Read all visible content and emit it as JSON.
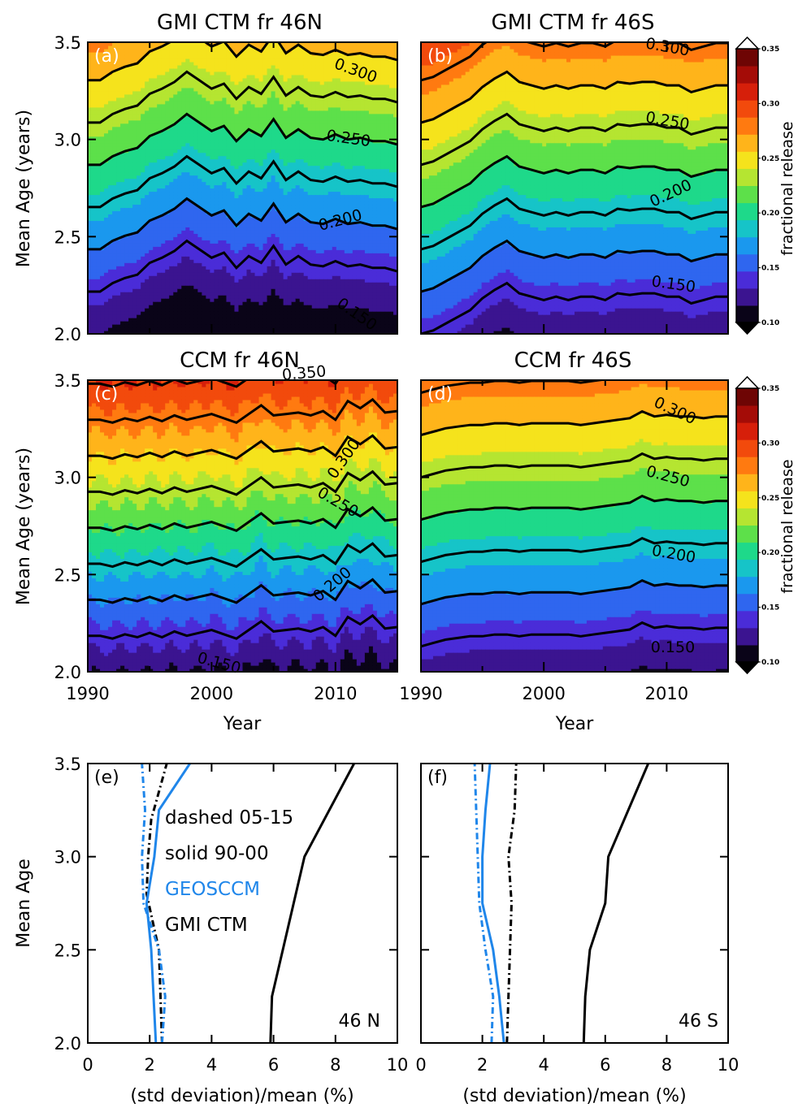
{
  "colors": {
    "scale": [
      "#0a0418",
      "#3b1490",
      "#4a2cd8",
      "#2f66ef",
      "#1a98ee",
      "#16c4c8",
      "#1ed98a",
      "#5de04a",
      "#b5e531",
      "#f5e31c",
      "#ffb41a",
      "#ff7a10",
      "#f24a0c",
      "#d61f0a",
      "#a40c07",
      "#6e0504"
    ],
    "geosccm": "#1f86ea",
    "gmictm": "#000000"
  },
  "colorbar": {
    "label": "fractional release",
    "ticks": [
      "0.10",
      "0.15",
      "0.20",
      "0.25",
      "0.30",
      "0.35"
    ]
  },
  "chart_data": [
    {
      "type": "heatmap",
      "panel": "(a)",
      "title": "GMI CTM fr 46N",
      "xlabel": "",
      "ylabel": "Mean Age (years)",
      "xlim": [
        1990,
        2015
      ],
      "ylim": [
        2.0,
        3.5
      ],
      "yticks": [
        "2.0",
        "2.5",
        "3.0",
        "3.5"
      ],
      "xticks": [],
      "contour_labels": [
        {
          "text": "0.300",
          "x": 2011.5,
          "y": 3.33,
          "rot": 20
        },
        {
          "text": "0.250",
          "x": 2011,
          "y": 2.98,
          "rot": 8
        },
        {
          "text": "0.200",
          "x": 2010.5,
          "y": 2.56,
          "rot": -15
        },
        {
          "text": "0.150",
          "x": 2011.5,
          "y": 2.08,
          "rot": 35
        }
      ],
      "years": [
        1990,
        1991,
        1992,
        1993,
        1994,
        1995,
        1996,
        1997,
        1998,
        1999,
        2000,
        2001,
        2002,
        2003,
        2004,
        2005,
        2006,
        2007,
        2008,
        2009,
        2010,
        2011,
        2012,
        2013,
        2014,
        2015
      ],
      "anomaly": [
        0.0,
        0.0,
        -0.005,
        -0.008,
        -0.01,
        -0.017,
        -0.02,
        -0.024,
        -0.03,
        -0.025,
        -0.02,
        -0.023,
        -0.014,
        -0.021,
        -0.017,
        -0.027,
        -0.016,
        -0.021,
        -0.016,
        -0.015,
        -0.018,
        -0.015,
        -0.016,
        -0.014,
        -0.014,
        -0.012
      ],
      "slope": 0.115,
      "intercept": 0.0,
      "noise": 0.0
    },
    {
      "type": "heatmap",
      "panel": "(b)",
      "title": "GMI CTM fr 46S",
      "xlabel": "",
      "ylabel": "",
      "xlim": [
        1990,
        2015
      ],
      "ylim": [
        2.0,
        3.5
      ],
      "yticks": [],
      "xticks": [],
      "contour_labels": [
        {
          "text": "0.300",
          "x": 2010,
          "y": 3.45,
          "rot": 10
        },
        {
          "text": "0.250",
          "x": 2010,
          "y": 3.07,
          "rot": 10
        },
        {
          "text": "0.200",
          "x": 2010.5,
          "y": 2.7,
          "rot": -25
        },
        {
          "text": "0.150",
          "x": 2010.5,
          "y": 2.23,
          "rot": 8
        }
      ],
      "years": [
        1990,
        1991,
        1992,
        1993,
        1994,
        1995,
        1996,
        1997,
        1998,
        1999,
        2000,
        2001,
        2002,
        2003,
        2004,
        2005,
        2006,
        2007,
        2008,
        2009,
        2010,
        2011,
        2012,
        2013,
        2014,
        2015
      ],
      "anomaly": [
        0.018,
        0.016,
        0.012,
        0.008,
        0.004,
        -0.003,
        -0.008,
        -0.012,
        -0.006,
        -0.004,
        -0.002,
        -0.004,
        -0.002,
        -0.004,
        -0.004,
        -0.002,
        -0.006,
        -0.005,
        -0.006,
        -0.006,
        -0.004,
        -0.004,
        0.0,
        -0.002,
        -0.004,
        -0.004
      ],
      "slope": 0.115,
      "intercept": 0.007,
      "noise": 0.0
    },
    {
      "type": "heatmap",
      "panel": "(c)",
      "title": "CCM fr 46N",
      "xlabel": "Year",
      "ylabel": "Mean Age (years)",
      "xlim": [
        1990,
        2015
      ],
      "ylim": [
        2.0,
        3.5
      ],
      "yticks": [
        "2.0",
        "2.5",
        "3.0",
        "3.5"
      ],
      "xticks": [
        "1990",
        "2000",
        "2010"
      ],
      "contour_labels": [
        {
          "text": "0.350",
          "x": 2007.5,
          "y": 3.51,
          "rot": -5
        },
        {
          "text": "0.300",
          "x": 2011,
          "y": 3.08,
          "rot": -55
        },
        {
          "text": "0.250",
          "x": 2010,
          "y": 2.85,
          "rot": 30
        },
        {
          "text": "0.200",
          "x": 2010,
          "y": 2.43,
          "rot": -40
        },
        {
          "text": "0.150",
          "x": 2000.5,
          "y": 2.02,
          "rot": 15
        }
      ],
      "years": [
        1990,
        1991,
        1992,
        1993,
        1994,
        1995,
        1996,
        1997,
        1998,
        1999,
        2000,
        2001,
        2002,
        2003,
        2004,
        2005,
        2006,
        2007,
        2008,
        2009,
        2010,
        2011,
        2012,
        2013,
        2014,
        2015
      ],
      "anomaly": [
        0.0,
        0.0,
        0.002,
        -0.001,
        0.001,
        -0.002,
        0.001,
        -0.003,
        0.0,
        -0.002,
        -0.004,
        -0.001,
        0.002,
        -0.004,
        -0.01,
        -0.003,
        -0.004,
        -0.005,
        -0.003,
        -0.006,
        0.0,
        -0.013,
        -0.008,
        -0.014,
        -0.005,
        -0.006
      ],
      "slope": 0.135,
      "intercept": 0.0,
      "noise": 0.004
    },
    {
      "type": "heatmap",
      "panel": "(d)",
      "title": "CCM fr 46S",
      "xlabel": "Year",
      "ylabel": "",
      "xlim": [
        1990,
        2015
      ],
      "ylim": [
        2.0,
        3.5
      ],
      "yticks": [],
      "xticks": [
        "1990",
        "2000",
        "2010"
      ],
      "contour_labels": [
        {
          "text": "0.300",
          "x": 2010.5,
          "y": 3.32,
          "rot": 25
        },
        {
          "text": "0.250",
          "x": 2010,
          "y": 2.98,
          "rot": 15
        },
        {
          "text": "0.200",
          "x": 2010.5,
          "y": 2.58,
          "rot": 10
        },
        {
          "text": "0.150",
          "x": 2010.5,
          "y": 2.1,
          "rot": 0
        }
      ],
      "years": [
        1990,
        1991,
        1992,
        1993,
        1994,
        1995,
        1996,
        1997,
        1998,
        1999,
        2000,
        2001,
        2002,
        2003,
        2004,
        2005,
        2006,
        2007,
        2008,
        2009,
        2010,
        2011,
        2012,
        2013,
        2014,
        2015
      ],
      "anomaly": [
        0.006,
        0.004,
        0.002,
        0.001,
        0.0,
        0.0,
        -0.001,
        -0.001,
        0.0,
        -0.001,
        -0.001,
        -0.001,
        -0.001,
        0.0,
        -0.001,
        -0.002,
        -0.003,
        -0.004,
        -0.008,
        -0.005,
        -0.006,
        -0.005,
        -0.005,
        -0.004,
        -0.005,
        -0.005
      ],
      "slope": 0.115,
      "intercept": 0.004,
      "noise": 0.0
    },
    {
      "type": "line",
      "panel": "(e)",
      "title": "",
      "xlabel": "(std deviation)/mean (%)",
      "ylabel": "Mean Age",
      "xlim": [
        0,
        10
      ],
      "ylim": [
        2.0,
        3.5
      ],
      "xticks": [
        "0",
        "2",
        "4",
        "6",
        "8",
        "10"
      ],
      "yticks": [
        "2.0",
        "2.5",
        "3.0",
        "3.5"
      ],
      "annotation": "46 N",
      "legend": [
        "dashed 05-15",
        "solid 90-00",
        "GEOSCCM",
        "GMI CTM"
      ],
      "series": [
        {
          "name": "GMI CTM",
          "style": "solid",
          "color": "#000000",
          "y": [
            2.0,
            2.25,
            3.0,
            3.5
          ],
          "x": [
            5.9,
            5.95,
            7.0,
            8.6
          ]
        },
        {
          "name": "GMI CTM",
          "style": "dashdot",
          "color": "#000000",
          "y": [
            2.0,
            2.5,
            2.8,
            3.0,
            3.2,
            3.5
          ],
          "x": [
            2.4,
            2.3,
            1.9,
            1.95,
            2.05,
            2.55
          ]
        },
        {
          "name": "GEOSCCM",
          "style": "solid",
          "color": "#1f86ea",
          "y": [
            2.0,
            2.5,
            2.75,
            3.0,
            3.25,
            3.5
          ],
          "x": [
            2.2,
            2.05,
            1.9,
            2.15,
            2.3,
            3.3
          ]
        },
        {
          "name": "GEOSCCM",
          "style": "dashdot",
          "color": "#1f86ea",
          "y": [
            2.0,
            2.25,
            2.5,
            2.75,
            3.0,
            3.25,
            3.5
          ],
          "x": [
            2.4,
            2.5,
            2.3,
            1.8,
            1.75,
            1.85,
            1.75
          ]
        }
      ]
    },
    {
      "type": "line",
      "panel": "(f)",
      "title": "",
      "xlabel": "(std deviation)/mean (%)",
      "ylabel": "",
      "xlim": [
        0,
        10
      ],
      "ylim": [
        2.0,
        3.5
      ],
      "xticks": [
        "0",
        "2",
        "4",
        "6",
        "8",
        "10"
      ],
      "yticks": [],
      "annotation": "46 S",
      "series": [
        {
          "name": "GMI CTM",
          "style": "solid",
          "color": "#000000",
          "y": [
            2.0,
            2.25,
            2.5,
            2.75,
            3.0,
            3.5
          ],
          "x": [
            5.3,
            5.35,
            5.5,
            6.0,
            6.1,
            7.4
          ]
        },
        {
          "name": "GMI CTM",
          "style": "dashdot",
          "color": "#000000",
          "y": [
            2.0,
            2.5,
            2.75,
            3.0,
            3.25,
            3.5
          ],
          "x": [
            2.8,
            2.9,
            2.95,
            2.85,
            3.05,
            3.1
          ]
        },
        {
          "name": "GEOSCCM",
          "style": "solid",
          "color": "#1f86ea",
          "y": [
            2.0,
            2.25,
            2.5,
            2.75,
            3.0,
            3.25,
            3.5
          ],
          "x": [
            2.7,
            2.55,
            2.35,
            2.0,
            2.0,
            2.1,
            2.25
          ]
        },
        {
          "name": "GEOSCCM",
          "style": "dashdot",
          "color": "#1f86ea",
          "y": [
            2.0,
            2.25,
            2.5,
            2.75,
            3.0,
            3.25,
            3.5
          ],
          "x": [
            2.3,
            2.35,
            2.1,
            1.9,
            1.85,
            1.8,
            1.75
          ]
        }
      ]
    }
  ]
}
